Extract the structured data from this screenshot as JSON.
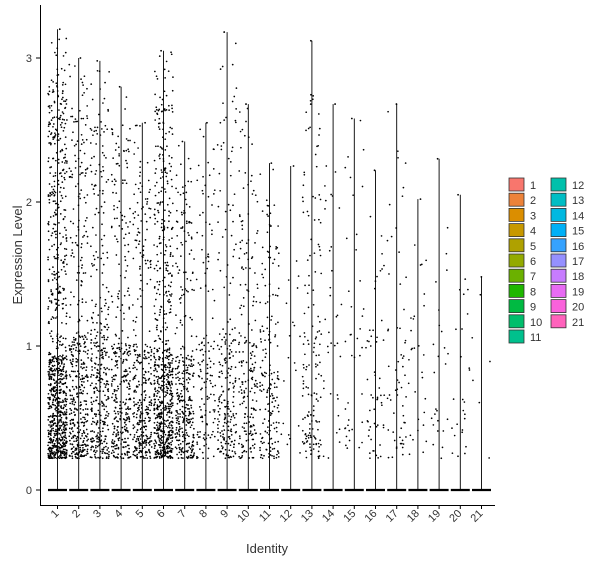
{
  "chart_data": {
    "type": "scatter",
    "subtype": "violin-jitter (vln plot with zero-width violins)",
    "xlabel": "Identity",
    "ylabel": "Expression Level",
    "categories": [
      "1",
      "2",
      "3",
      "4",
      "5",
      "6",
      "7",
      "8",
      "9",
      "10",
      "11",
      "12",
      "13",
      "14",
      "15",
      "16",
      "17",
      "18",
      "19",
      "20",
      "21"
    ],
    "ylim": [
      -0.15,
      3.3
    ],
    "yticks": [
      0,
      1,
      2,
      3
    ],
    "ytick_labels": [
      "0",
      "1",
      "2",
      "3"
    ],
    "x_tick_rotation": -45,
    "grid": false,
    "legend": {
      "placement": "right",
      "columns": 2,
      "entries": [
        {
          "label": "1",
          "color": "#F8766D"
        },
        {
          "label": "2",
          "color": "#EC8239"
        },
        {
          "label": "3",
          "color": "#DB8E00"
        },
        {
          "label": "4",
          "color": "#C79800"
        },
        {
          "label": "5",
          "color": "#AFA100"
        },
        {
          "label": "6",
          "color": "#93AA00"
        },
        {
          "label": "7",
          "color": "#6BB100"
        },
        {
          "label": "8",
          "color": "#1FB700"
        },
        {
          "label": "9",
          "color": "#00BA42"
        },
        {
          "label": "10",
          "color": "#00BE6C"
        },
        {
          "label": "11",
          "color": "#00C08D"
        },
        {
          "label": "12",
          "color": "#00C0AB"
        },
        {
          "label": "13",
          "color": "#00BDC4"
        },
        {
          "label": "14",
          "color": "#00B8E0"
        },
        {
          "label": "15",
          "color": "#00B0F6"
        },
        {
          "label": "16",
          "color": "#35A2FF"
        },
        {
          "label": "17",
          "color": "#9590FF"
        },
        {
          "label": "18",
          "color": "#C77CFF"
        },
        {
          "label": "19",
          "color": "#E76BF3"
        },
        {
          "label": "20",
          "color": "#FA62DB"
        },
        {
          "label": "21",
          "color": "#FF62BC"
        }
      ]
    },
    "series": [
      {
        "category": "1",
        "max": 3.2,
        "n_nonzero": 900,
        "mean_nonzero": 0.8
      },
      {
        "category": "2",
        "max": 3.0,
        "n_nonzero": 420,
        "mean_nonzero": 0.95
      },
      {
        "category": "3",
        "max": 2.98,
        "n_nonzero": 360,
        "mean_nonzero": 1.05
      },
      {
        "category": "4",
        "max": 2.8,
        "n_nonzero": 340,
        "mean_nonzero": 0.9
      },
      {
        "category": "5",
        "max": 2.55,
        "n_nonzero": 330,
        "mean_nonzero": 0.85
      },
      {
        "category": "6",
        "max": 3.05,
        "n_nonzero": 700,
        "mean_nonzero": 0.85
      },
      {
        "category": "7",
        "max": 2.42,
        "n_nonzero": 330,
        "mean_nonzero": 0.8
      },
      {
        "category": "8",
        "max": 2.55,
        "n_nonzero": 140,
        "mean_nonzero": 0.95
      },
      {
        "category": "9",
        "max": 3.18,
        "n_nonzero": 220,
        "mean_nonzero": 0.95
      },
      {
        "category": "10",
        "max": 2.68,
        "n_nonzero": 200,
        "mean_nonzero": 0.95
      },
      {
        "category": "11",
        "max": 2.27,
        "n_nonzero": 180,
        "mean_nonzero": 1.05
      },
      {
        "category": "12",
        "max": 2.25,
        "n_nonzero": 20,
        "mean_nonzero": 1.4
      },
      {
        "category": "13",
        "max": 3.12,
        "n_nonzero": 150,
        "mean_nonzero": 1.0
      },
      {
        "category": "14",
        "max": 2.68,
        "n_nonzero": 35,
        "mean_nonzero": 1.2
      },
      {
        "category": "15",
        "max": 2.58,
        "n_nonzero": 40,
        "mean_nonzero": 1.05
      },
      {
        "category": "16",
        "max": 2.22,
        "n_nonzero": 55,
        "mean_nonzero": 1.0
      },
      {
        "category": "17",
        "max": 2.68,
        "n_nonzero": 60,
        "mean_nonzero": 1.0
      },
      {
        "category": "18",
        "max": 2.02,
        "n_nonzero": 30,
        "mean_nonzero": 0.85
      },
      {
        "category": "19",
        "max": 2.3,
        "n_nonzero": 25,
        "mean_nonzero": 1.0
      },
      {
        "category": "20",
        "max": 2.05,
        "n_nonzero": 25,
        "mean_nonzero": 1.35
      },
      {
        "category": "21",
        "max": 1.48,
        "n_nonzero": 6,
        "mean_nonzero": 0.75
      }
    ]
  }
}
